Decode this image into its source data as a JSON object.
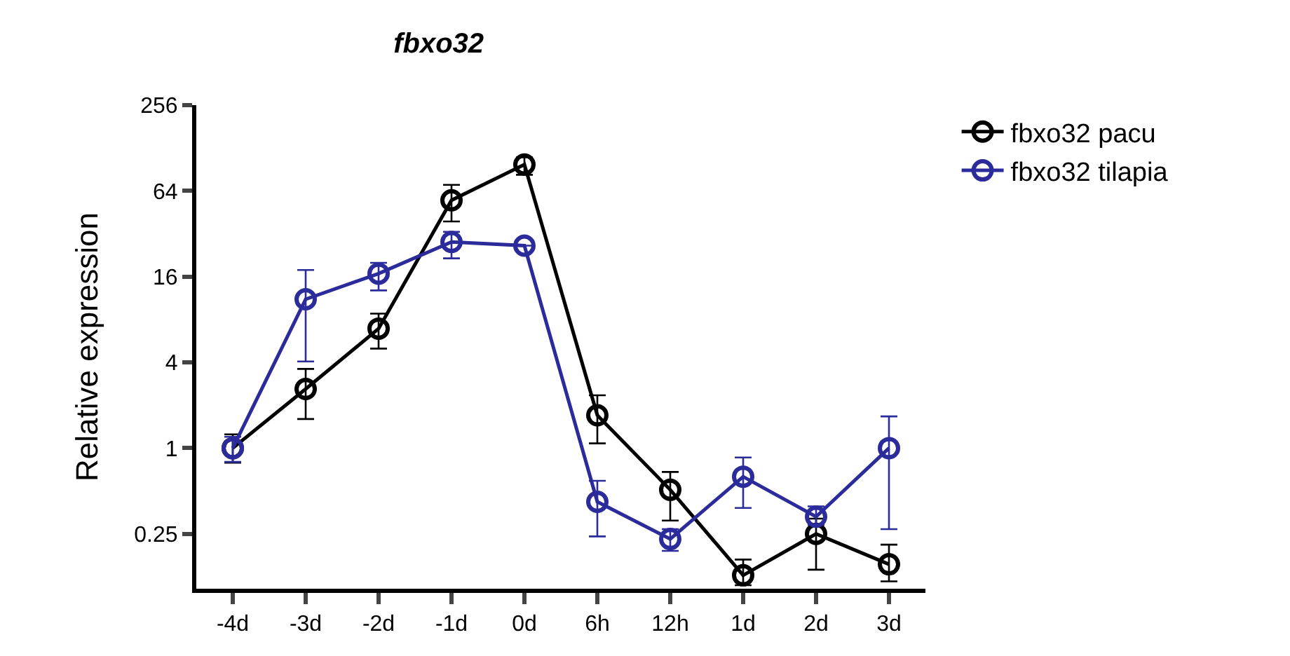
{
  "chart_data": {
    "type": "line",
    "title": "fbxo32",
    "ylabel": "Relative expression",
    "categories": [
      "-4d",
      "-3d",
      "-2d",
      "-1d",
      "0d",
      "6h",
      "12h",
      "1d",
      "2d",
      "3d"
    ],
    "series": [
      {
        "name": "fbxo32 pacu",
        "color": "#000000",
        "values": [
          1,
          2.6,
          6.9,
          55,
          98,
          1.7,
          0.51,
          0.128,
          0.25,
          0.153
        ],
        "errors": [
          [
            0.79,
            1.25
          ],
          [
            1.6,
            3.6
          ],
          [
            5.0,
            8.8
          ],
          [
            39,
            70.6
          ],
          [
            83,
            110
          ],
          [
            1.08,
            2.35
          ],
          [
            0.31,
            0.68
          ],
          [
            0.109,
            0.165
          ],
          [
            0.14,
            0.32
          ],
          [
            0.116,
            0.21
          ]
        ]
      },
      {
        "name": "fbxo32 tilapia",
        "color": "#2b2b9b",
        "values": [
          1,
          11.1,
          16.8,
          28,
          26.4,
          0.42,
          0.23,
          0.63,
          0.33,
          1
        ],
        "errors": [
          [
            0.8,
            1.2
          ],
          [
            4.06,
            17.8
          ],
          [
            12.8,
            20
          ],
          [
            21.5,
            33
          ],
          null,
          [
            0.24,
            0.59
          ],
          [
            0.19,
            0.27
          ],
          [
            0.38,
            0.86
          ],
          [
            0.29,
            0.39
          ],
          [
            0.27,
            1.67
          ]
        ]
      }
    ],
    "log": true,
    "ylim": [
      0.103,
      256
    ],
    "yticks": [
      0.25,
      1,
      4,
      16,
      64,
      256
    ],
    "marker": "circle",
    "line_style": "solid",
    "legend": "top right"
  }
}
